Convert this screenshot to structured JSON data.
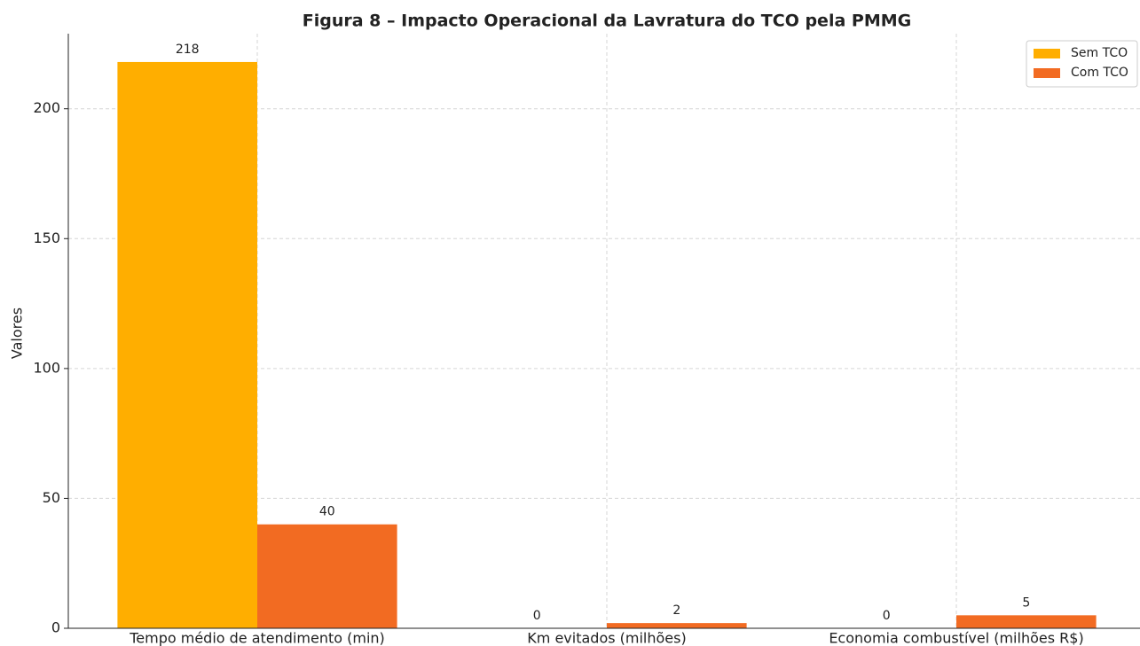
{
  "chart_data": {
    "type": "bar",
    "title": "Figura 8 – Impacto Operacional da Lavratura do TCO pela PMMG",
    "y_label": "Valores",
    "categories": [
      "Tempo médio de atendimento (min)",
      "Km evitados (milhões)",
      "Economia combustível (milhões R$)"
    ],
    "series": [
      {
        "name": "Sem TCO",
        "color": "#ffae00",
        "values": [
          218,
          0,
          0
        ]
      },
      {
        "name": "Com TCO",
        "color": "#f26b22",
        "values": [
          40,
          2,
          5
        ]
      }
    ],
    "ylim": [
      0,
      228.9
    ],
    "yticks": [
      0,
      50,
      100,
      150,
      200
    ],
    "grid": true,
    "legend": "upper right"
  }
}
